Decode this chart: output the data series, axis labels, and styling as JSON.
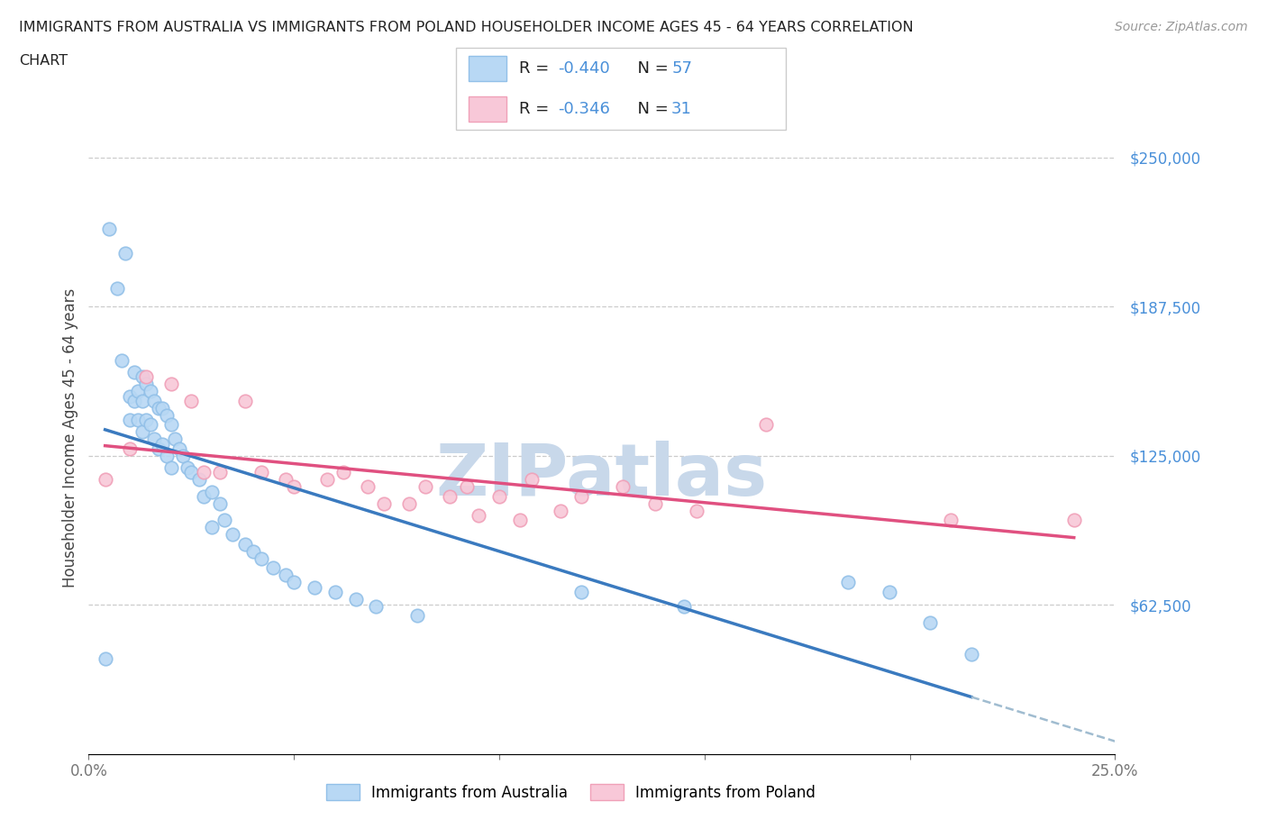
{
  "title_line1": "IMMIGRANTS FROM AUSTRALIA VS IMMIGRANTS FROM POLAND HOUSEHOLDER INCOME AGES 45 - 64 YEARS CORRELATION",
  "title_line2": "CHART",
  "source_text": "Source: ZipAtlas.com",
  "ylabel": "Householder Income Ages 45 - 64 years",
  "xlim": [
    0.0,
    0.25
  ],
  "ylim": [
    0,
    265000
  ],
  "xticks": [
    0.0,
    0.05,
    0.1,
    0.15,
    0.2,
    0.25
  ],
  "xticklabels": [
    "0.0%",
    "",
    "",
    "",
    "",
    "25.0%"
  ],
  "ytick_positions": [
    62500,
    125000,
    187500,
    250000
  ],
  "ytick_labels": [
    "$62,500",
    "$125,000",
    "$187,500",
    "$250,000"
  ],
  "australia_color": "#92c0e8",
  "australia_color_fill": "#b8d8f4",
  "poland_color": "#f0a0b8",
  "poland_color_fill": "#f8c8d8",
  "trend_australia_color": "#3a7abf",
  "trend_poland_color": "#e05080",
  "trend_dash_color": "#a0bcd0",
  "legend_R_aus": "-0.440",
  "legend_N_aus": "57",
  "legend_R_pol": "-0.346",
  "legend_N_pol": "31",
  "watermark_color": "#c8d8ea",
  "aus_scatter_x": [
    0.004,
    0.005,
    0.007,
    0.008,
    0.009,
    0.01,
    0.01,
    0.011,
    0.011,
    0.012,
    0.012,
    0.013,
    0.013,
    0.013,
    0.014,
    0.014,
    0.015,
    0.015,
    0.016,
    0.016,
    0.017,
    0.017,
    0.018,
    0.018,
    0.019,
    0.019,
    0.02,
    0.02,
    0.021,
    0.022,
    0.023,
    0.024,
    0.025,
    0.027,
    0.028,
    0.03,
    0.03,
    0.032,
    0.033,
    0.035,
    0.038,
    0.04,
    0.042,
    0.045,
    0.048,
    0.05,
    0.055,
    0.06,
    0.065,
    0.07,
    0.08,
    0.12,
    0.145,
    0.185,
    0.195,
    0.205,
    0.215
  ],
  "aus_scatter_y": [
    40000,
    220000,
    195000,
    165000,
    210000,
    150000,
    140000,
    160000,
    148000,
    152000,
    140000,
    158000,
    148000,
    135000,
    155000,
    140000,
    152000,
    138000,
    148000,
    132000,
    145000,
    128000,
    145000,
    130000,
    142000,
    125000,
    138000,
    120000,
    132000,
    128000,
    125000,
    120000,
    118000,
    115000,
    108000,
    110000,
    95000,
    105000,
    98000,
    92000,
    88000,
    85000,
    82000,
    78000,
    75000,
    72000,
    70000,
    68000,
    65000,
    62000,
    58000,
    68000,
    62000,
    72000,
    68000,
    55000,
    42000
  ],
  "pol_scatter_x": [
    0.004,
    0.01,
    0.014,
    0.02,
    0.025,
    0.028,
    0.032,
    0.038,
    0.042,
    0.048,
    0.05,
    0.058,
    0.062,
    0.068,
    0.072,
    0.078,
    0.082,
    0.088,
    0.092,
    0.095,
    0.1,
    0.105,
    0.108,
    0.115,
    0.12,
    0.13,
    0.138,
    0.148,
    0.165,
    0.21,
    0.24
  ],
  "pol_scatter_y": [
    115000,
    128000,
    158000,
    155000,
    148000,
    118000,
    118000,
    148000,
    118000,
    115000,
    112000,
    115000,
    118000,
    112000,
    105000,
    105000,
    112000,
    108000,
    112000,
    100000,
    108000,
    98000,
    115000,
    102000,
    108000,
    112000,
    105000,
    102000,
    138000,
    98000,
    98000
  ]
}
